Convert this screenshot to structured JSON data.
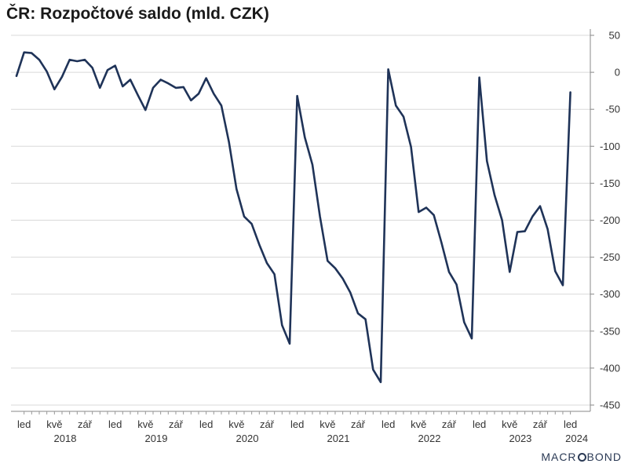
{
  "chart_data": {
    "type": "line",
    "title": "ČR: Rozpočtové saldo (mld. CZK)",
    "ylim": [
      -450,
      50
    ],
    "yticks": [
      50,
      0,
      -50,
      -100,
      -150,
      -200,
      -250,
      -300,
      -350,
      -400,
      -450
    ],
    "grid": true,
    "x_month_labels": [
      {
        "month": "2018-01",
        "label": "led"
      },
      {
        "month": "2018-05",
        "label": "kvě"
      },
      {
        "month": "2018-09",
        "label": "zář"
      },
      {
        "month": "2019-01",
        "label": "led"
      },
      {
        "month": "2019-05",
        "label": "kvě"
      },
      {
        "month": "2019-09",
        "label": "zář"
      },
      {
        "month": "2020-01",
        "label": "led"
      },
      {
        "month": "2020-05",
        "label": "kvě"
      },
      {
        "month": "2020-09",
        "label": "zář"
      },
      {
        "month": "2021-01",
        "label": "led"
      },
      {
        "month": "2021-05",
        "label": "kvě"
      },
      {
        "month": "2021-09",
        "label": "zář"
      },
      {
        "month": "2022-01",
        "label": "led"
      },
      {
        "month": "2022-05",
        "label": "kvě"
      },
      {
        "month": "2022-09",
        "label": "zář"
      },
      {
        "month": "2023-01",
        "label": "led"
      },
      {
        "month": "2023-05",
        "label": "kvě"
      },
      {
        "month": "2023-09",
        "label": "zář"
      },
      {
        "month": "2024-01",
        "label": "led"
      }
    ],
    "x_year_labels": [
      "2018",
      "2019",
      "2020",
      "2021",
      "2022",
      "2023",
      "2024"
    ],
    "series": [
      {
        "color": "#1f3358",
        "x": [
          "2017-12",
          "2018-01",
          "2018-02",
          "2018-03",
          "2018-04",
          "2018-05",
          "2018-06",
          "2018-07",
          "2018-08",
          "2018-09",
          "2018-10",
          "2018-11",
          "2018-12",
          "2019-01",
          "2019-02",
          "2019-03",
          "2019-04",
          "2019-05",
          "2019-06",
          "2019-07",
          "2019-08",
          "2019-09",
          "2019-10",
          "2019-11",
          "2019-12",
          "2020-01",
          "2020-02",
          "2020-03",
          "2020-04",
          "2020-05",
          "2020-06",
          "2020-07",
          "2020-08",
          "2020-09",
          "2020-10",
          "2020-11",
          "2020-12",
          "2021-01",
          "2021-02",
          "2021-03",
          "2021-04",
          "2021-05",
          "2021-06",
          "2021-07",
          "2021-08",
          "2021-09",
          "2021-10",
          "2021-11",
          "2021-12",
          "2022-01",
          "2022-02",
          "2022-03",
          "2022-04",
          "2022-05",
          "2022-06",
          "2022-07",
          "2022-08",
          "2022-09",
          "2022-10",
          "2022-11",
          "2022-12",
          "2023-01",
          "2023-02",
          "2023-03",
          "2023-04",
          "2023-05",
          "2023-06",
          "2023-07",
          "2023-08",
          "2023-09",
          "2023-10",
          "2023-11",
          "2023-12",
          "2024-01"
        ],
        "y": [
          -5,
          27,
          26,
          17,
          1,
          -23,
          -6,
          17,
          15,
          17,
          6,
          -21,
          3,
          9,
          -19,
          -10,
          -31,
          -51,
          -21,
          -10,
          -15,
          -21,
          -20,
          -38,
          -29,
          -8,
          -29,
          -45,
          -94,
          -158,
          -195,
          -205,
          -233,
          -258,
          -273,
          -342,
          -367,
          -32,
          -88,
          -125,
          -195,
          -255,
          -265,
          -279,
          -298,
          -326,
          -334,
          -402,
          -419,
          4,
          -45,
          -60,
          -101,
          -189,
          -183,
          -193,
          -230,
          -270,
          -287,
          -338,
          -360,
          -7,
          -120,
          -166,
          -200,
          -270,
          -216,
          -215,
          -195,
          -181,
          -212,
          -269,
          -288,
          -27
        ]
      }
    ]
  },
  "logo_text": "MACROBOND"
}
